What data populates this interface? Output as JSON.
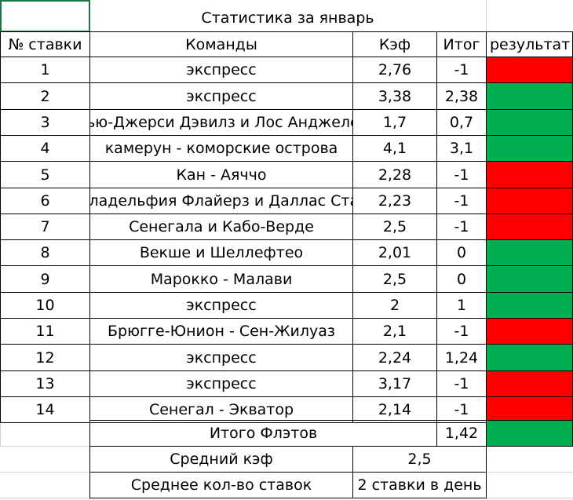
{
  "title": "Статистика за январь",
  "headers": {
    "num": "№ ставки",
    "teams": "Команды",
    "coef": "Кэф",
    "total": "Итог",
    "result": "результат"
  },
  "colors": {
    "win": "#00b050",
    "loss": "#ff0000",
    "grid": "#d4d4d4",
    "select": "#217346"
  },
  "rows": [
    {
      "num": "1",
      "teams": "экспресс",
      "coef": "2,76",
      "total": "-1",
      "result": "loss"
    },
    {
      "num": "2",
      "teams": "экспресс",
      "coef": "3,38",
      "total": "2,38",
      "result": "win"
    },
    {
      "num": "3",
      "teams": "Нью-Джерси Дэвилз и Лос Анджелес",
      "coef": "1,7",
      "total": "0,7",
      "result": "win"
    },
    {
      "num": "4",
      "teams": "камерун - коморские острова",
      "coef": "4,1",
      "total": "3,1",
      "result": "win"
    },
    {
      "num": "5",
      "teams": "Кан - Аяччо",
      "coef": "2,28",
      "total": "-1",
      "result": "loss"
    },
    {
      "num": "6",
      "teams": "Филадельфия Флайерз и Даллас Старз",
      "coef": "2,23",
      "total": "-1",
      "result": "loss"
    },
    {
      "num": "7",
      "teams": "Сенегала и Кабо-Верде",
      "coef": "2,5",
      "total": "-1",
      "result": "loss"
    },
    {
      "num": "8",
      "teams": "Векше и Шеллефтео",
      "coef": "2,01",
      "total": "0",
      "result": "win"
    },
    {
      "num": "9",
      "teams": "Марокко - Малави",
      "coef": "2,5",
      "total": "0",
      "result": "win"
    },
    {
      "num": "10",
      "teams": "экспресс",
      "coef": "2",
      "total": "1",
      "result": "win"
    },
    {
      "num": "11",
      "teams": "Брюгге-Юнион - Сен-Жилуаз",
      "coef": "2,1",
      "total": "-1",
      "result": "loss"
    },
    {
      "num": "12",
      "teams": "экспресс",
      "coef": "2,24",
      "total": "1,24",
      "result": "win"
    },
    {
      "num": "13",
      "teams": "экспресс",
      "coef": "3,17",
      "total": "-1",
      "result": "loss"
    },
    {
      "num": "14",
      "teams": "Сенегал - Экватор",
      "coef": "2,14",
      "total": "-1",
      "result": "loss"
    }
  ],
  "summary": {
    "flat_label": "Итого Флэтов",
    "flat_value": "1,42",
    "flat_result": "win",
    "avg_coef_label": "Средний кэф",
    "avg_coef_value": "2,5",
    "avg_bets_label": "Среднее кол-во ставок",
    "avg_bets_value": "2 ставки в день"
  }
}
